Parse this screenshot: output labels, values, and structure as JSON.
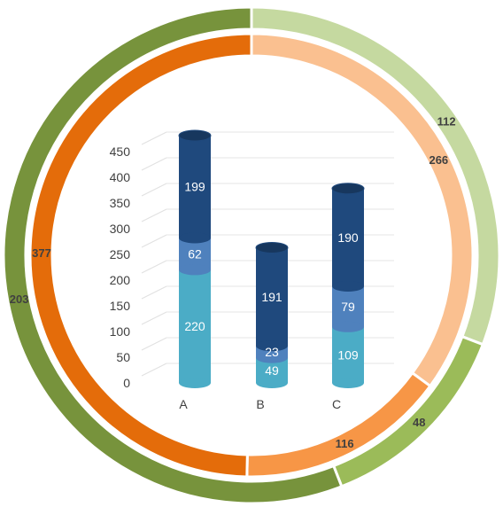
{
  "chart_data": [
    {
      "type": "donut",
      "ring": "outer",
      "values": [
        112,
        48,
        203
      ],
      "colors": [
        "#c5d9a0",
        "#9bbb59",
        "#77933c"
      ],
      "value_labels": [
        "112",
        "48",
        "203"
      ]
    },
    {
      "type": "donut",
      "ring": "inner",
      "values": [
        266,
        116,
        377
      ],
      "colors": [
        "#fac090",
        "#f79646",
        "#e46c0a"
      ],
      "value_labels": [
        "266",
        "116",
        "377"
      ]
    },
    {
      "type": "bar",
      "stacked": true,
      "style": "3d-cylinder",
      "categories": [
        "A",
        "B",
        "C"
      ],
      "series": [
        {
          "values": [
            220,
            49,
            109
          ],
          "color": "#4bacc6"
        },
        {
          "values": [
            62,
            23,
            79
          ],
          "color": "#4f81bd"
        },
        {
          "values": [
            199,
            191,
            190
          ],
          "color": "#1f497d"
        }
      ],
      "ylim": [
        0,
        500
      ],
      "y_ticks": [
        "0",
        "50",
        "100",
        "150",
        "200",
        "250",
        "300",
        "350",
        "400",
        "450"
      ],
      "grid": true
    }
  ]
}
